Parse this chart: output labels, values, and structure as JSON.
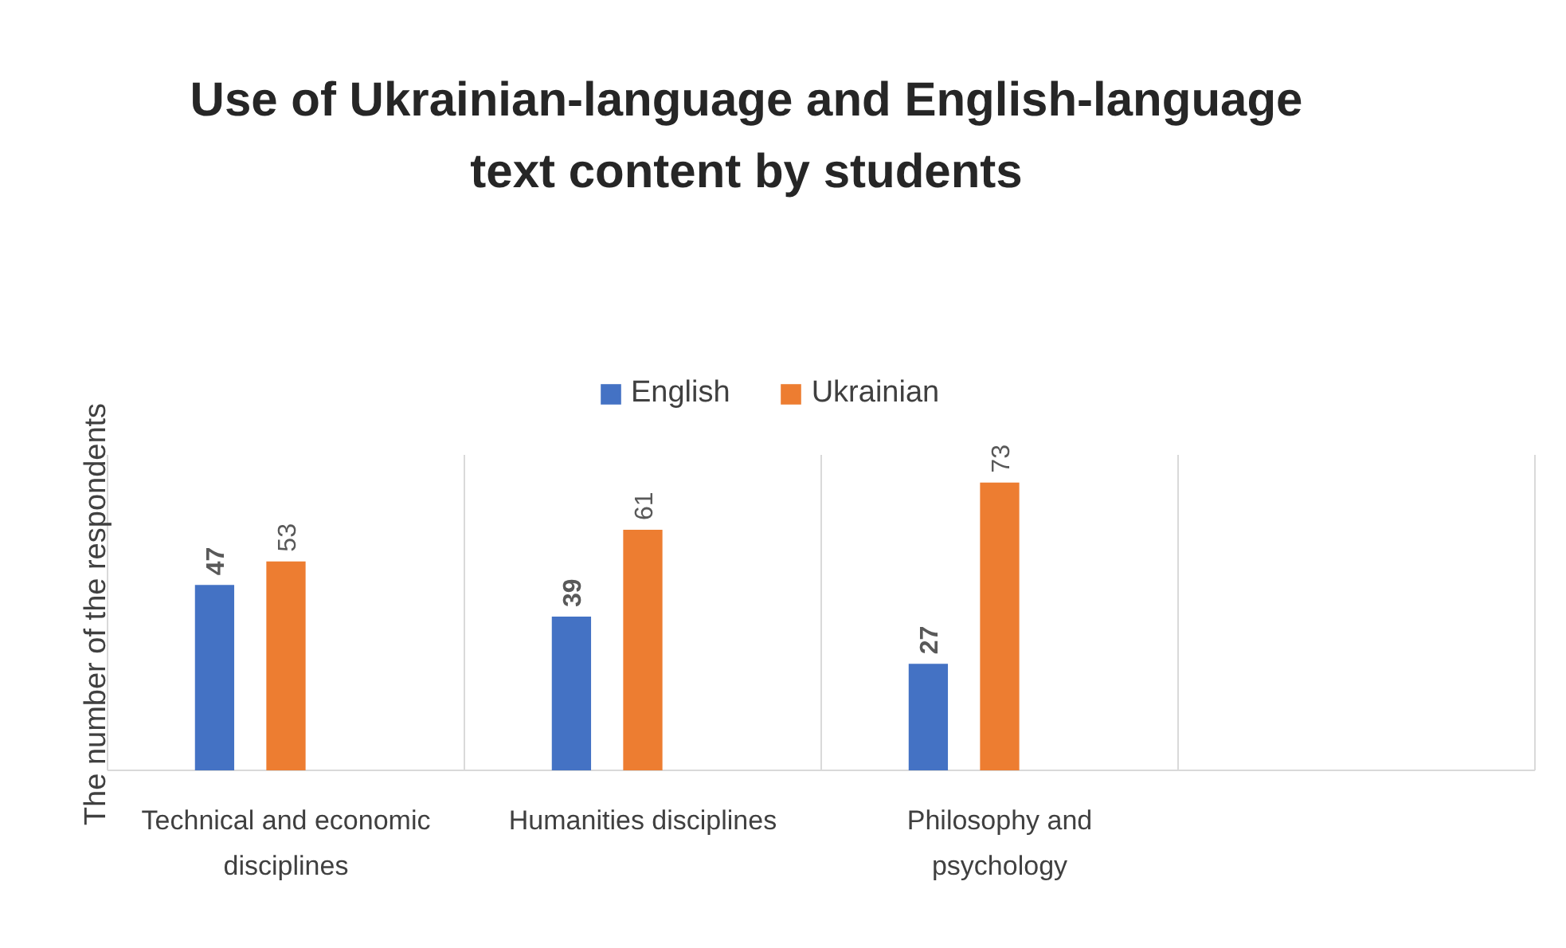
{
  "chart_data": {
    "type": "bar",
    "title": "Use of Ukrainian-language and English-language\ntext content by students",
    "ylabel": "The number of the respondents",
    "categories": [
      "Technical and economic disciplines",
      "Humanities disciplines",
      "Philosophy and psychology",
      null
    ],
    "series": [
      {
        "name": "English",
        "color": "#4472c4",
        "values": [
          47,
          39,
          27,
          null
        ]
      },
      {
        "name": "Ukrainian",
        "color": "#ed7d31",
        "values": [
          53,
          61,
          73,
          null
        ]
      }
    ],
    "ylim": [
      0,
      80
    ],
    "data_labels": true,
    "grid": "x",
    "legend": "top",
    "tick_labels": "x"
  }
}
